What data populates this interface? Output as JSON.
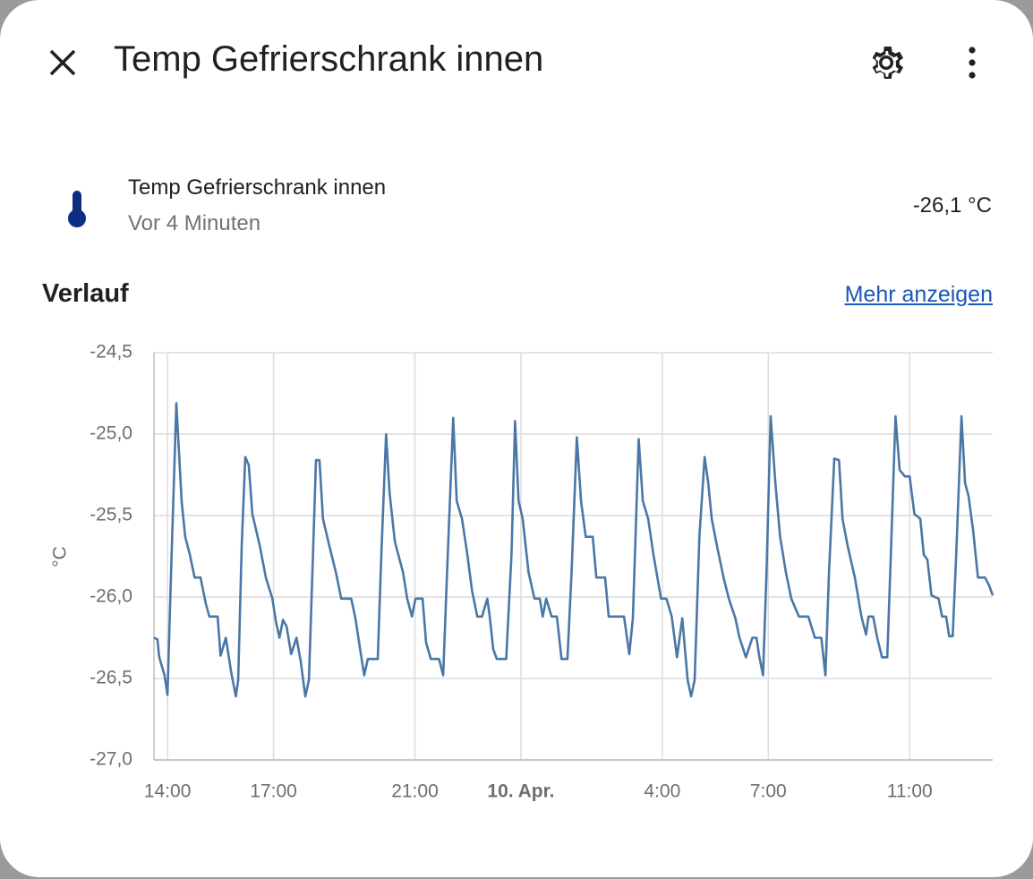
{
  "header": {
    "title": "Temp Gefrierschrank innen"
  },
  "entity": {
    "name": "Temp Gefrierschrank innen",
    "last_changed": "Vor 4 Minuten",
    "state": "-26,1 °C"
  },
  "history": {
    "title": "Verlauf",
    "link": "Mehr anzeigen"
  },
  "chart_data": {
    "type": "line",
    "y_label": "°C",
    "color": "#4a77a6",
    "grid": true,
    "xlim": [
      "13:37",
      "13:21"
    ],
    "xticks": [
      "14:00",
      "17:00",
      "21:00",
      {
        "value": "0:00",
        "label": "10. Apr."
      },
      "4:00",
      "7:00",
      "11:00"
    ],
    "ylim": [
      -27,
      -24.5
    ],
    "yticks": [
      {
        "value": -27,
        "label": "-27,0"
      },
      {
        "value": -26.5,
        "label": "-26,5"
      },
      {
        "value": -26,
        "label": "-26,0"
      },
      {
        "value": -25.5,
        "label": "-25,5"
      },
      {
        "value": -25,
        "label": "-25,0"
      },
      {
        "value": -24.5,
        "label": "-24,5"
      }
    ],
    "x": [
      "13:37",
      "13:43",
      "13:46",
      "13:55",
      "14:00",
      "14:06",
      "14:15",
      "14:24",
      "14:30",
      "14:38",
      "14:46",
      "14:56",
      "15:05",
      "15:11",
      "15:25",
      "15:30",
      "15:39",
      "15:48",
      "15:56",
      "16:00",
      "16:06",
      "16:12",
      "16:18",
      "16:24",
      "16:37",
      "16:47",
      "16:58",
      "17:04",
      "17:10",
      "17:16",
      "17:22",
      "17:30",
      "17:39",
      "17:46",
      "17:54",
      "18:00",
      "18:06",
      "18:12",
      "18:18",
      "18:24",
      "18:35",
      "18:46",
      "18:55",
      "19:12",
      "19:19",
      "19:27",
      "19:34",
      "19:40",
      "19:57",
      "20:03",
      "20:11",
      "20:17",
      "20:26",
      "20:40",
      "20:47",
      "20:55",
      "21:01",
      "21:13",
      "21:19",
      "21:27",
      "21:41",
      "21:48",
      "21:54",
      "22:05",
      "22:11",
      "22:20",
      "22:29",
      "22:37",
      "22:46",
      "22:54",
      "23:03",
      "23:07",
      "23:13",
      "23:19",
      "23:35",
      "23:44",
      "23:50",
      "23:56",
      "0:03",
      "0:13",
      "0:23",
      "0:32",
      "0:37",
      "0:43",
      "0:52",
      "1:01",
      "1:09",
      "1:19",
      "1:26",
      "1:35",
      "1:42",
      "1:50",
      "2:02",
      "2:08",
      "2:23",
      "2:29",
      "2:55",
      "3:04",
      "3:10",
      "3:20",
      "3:27",
      "3:36",
      "3:45",
      "3:58",
      "4:07",
      "4:16",
      "4:25",
      "4:34",
      "4:43",
      "4:49",
      "4:55",
      "5:03",
      "5:12",
      "5:18",
      "5:24",
      "5:33",
      "5:44",
      "5:53",
      "6:04",
      "6:11",
      "6:22",
      "6:33",
      "6:40",
      "6:45",
      "6:51",
      "6:57",
      "7:04",
      "7:12",
      "7:20",
      "7:30",
      "7:39",
      "7:52",
      "8:08",
      "8:19",
      "8:30",
      "8:37",
      "8:43",
      "8:52",
      "9:00",
      "9:06",
      "9:15",
      "9:27",
      "9:38",
      "9:46",
      "9:50",
      "9:58",
      "10:05",
      "10:13",
      "10:22",
      "10:28",
      "10:36",
      "10:43",
      "10:52",
      "11:00",
      "11:08",
      "11:18",
      "11:24",
      "11:30",
      "11:37",
      "11:49",
      "11:55",
      "12:02",
      "12:07",
      "12:13",
      "12:19",
      "12:28",
      "12:34",
      "12:40",
      "12:48",
      "12:56",
      "13:08",
      "13:15",
      "13:21"
    ],
    "values": [
      -26.25,
      -26.26,
      -26.37,
      -26.48,
      -26.6,
      -25.85,
      -24.81,
      -25.41,
      -25.63,
      -25.74,
      -25.88,
      -25.88,
      -26.04,
      -26.12,
      -26.12,
      -26.36,
      -26.25,
      -26.46,
      -26.61,
      -26.51,
      -25.69,
      -25.14,
      -25.19,
      -25.49,
      -25.69,
      -25.88,
      -26.01,
      -26.15,
      -26.25,
      -26.14,
      -26.18,
      -26.35,
      -26.25,
      -26.39,
      -26.61,
      -26.51,
      -25.85,
      -25.16,
      -25.16,
      -25.52,
      -25.69,
      -25.85,
      -26.01,
      -26.01,
      -26.13,
      -26.32,
      -26.48,
      -26.38,
      -26.38,
      -25.74,
      -25.0,
      -25.36,
      -25.66,
      -25.85,
      -26.01,
      -26.12,
      -26.01,
      -26.01,
      -26.28,
      -26.38,
      -26.38,
      -26.48,
      -25.91,
      -24.9,
      -25.41,
      -25.52,
      -25.74,
      -25.96,
      -26.12,
      -26.12,
      -26.01,
      -26.12,
      -26.32,
      -26.38,
      -26.38,
      -25.74,
      -24.92,
      -25.41,
      -25.52,
      -25.85,
      -26.01,
      -26.01,
      -26.12,
      -26.01,
      -26.12,
      -26.12,
      -26.38,
      -26.38,
      -25.85,
      -25.02,
      -25.41,
      -25.63,
      -25.63,
      -25.88,
      -25.88,
      -26.12,
      -26.12,
      -26.35,
      -26.13,
      -25.03,
      -25.41,
      -25.52,
      -25.74,
      -26.01,
      -26.01,
      -26.12,
      -26.37,
      -26.13,
      -26.51,
      -26.61,
      -26.51,
      -25.63,
      -25.14,
      -25.3,
      -25.52,
      -25.69,
      -25.88,
      -26.01,
      -26.13,
      -26.25,
      -26.37,
      -26.25,
      -26.25,
      -26.37,
      -26.48,
      -25.85,
      -24.89,
      -25.3,
      -25.63,
      -25.85,
      -26.01,
      -26.12,
      -26.12,
      -26.25,
      -26.25,
      -26.48,
      -25.85,
      -25.15,
      -25.16,
      -25.52,
      -25.69,
      -25.88,
      -26.12,
      -26.23,
      -26.12,
      -26.12,
      -26.25,
      -26.37,
      -26.37,
      -25.74,
      -24.89,
      -25.22,
      -25.26,
      -25.26,
      -25.49,
      -25.52,
      -25.74,
      -25.77,
      -25.99,
      -26.01,
      -26.12,
      -26.12,
      -26.24,
      -26.24,
      -25.74,
      -24.89,
      -25.3,
      -25.38,
      -25.6,
      -25.88,
      -25.88,
      -25.93,
      -25.99
    ]
  }
}
